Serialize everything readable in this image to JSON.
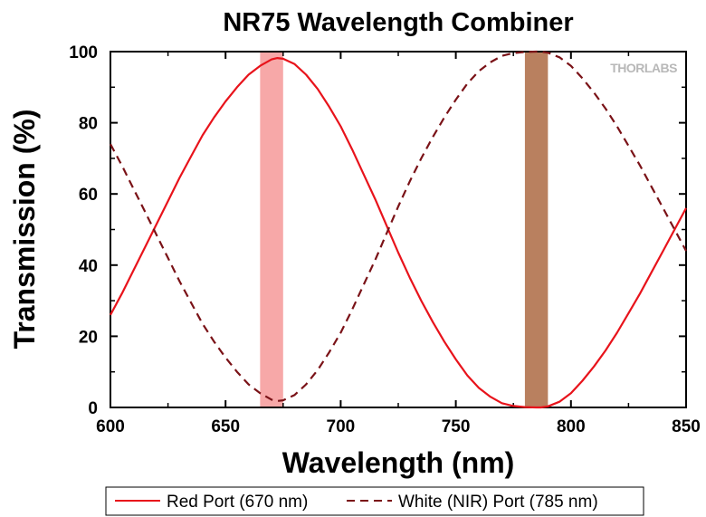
{
  "chart_data": {
    "type": "line",
    "title": "NR75 Wavelength Combiner",
    "xlabel": "Wavelength (nm)",
    "ylabel": "Transmission (%)",
    "xlim": [
      600,
      850
    ],
    "ylim": [
      0,
      100
    ],
    "xticks": [
      600,
      650,
      700,
      750,
      800,
      850
    ],
    "yticks": [
      0,
      20,
      40,
      60,
      80,
      100
    ],
    "xtick_labels": [
      "600",
      "650",
      "700",
      "750",
      "800",
      "850"
    ],
    "ytick_labels": [
      "0",
      "20",
      "40",
      "60",
      "80",
      "100"
    ],
    "grid": false,
    "legend_position": "bottom",
    "logo": "THORLABS",
    "bands": [
      {
        "x0": 665,
        "x1": 675,
        "color": "#f7a8a8"
      },
      {
        "x0": 780,
        "x1": 790,
        "color": "#b9805f"
      }
    ],
    "series": [
      {
        "name": "Red Port (670 nm)",
        "color": "#e8131b",
        "style": "solid",
        "x": [
          600,
          605,
          610,
          615,
          620,
          625,
          630,
          635,
          640,
          645,
          650,
          655,
          660,
          665,
          670,
          672.5,
          675,
          680,
          685,
          690,
          695,
          700,
          705,
          710,
          715,
          720,
          725,
          730,
          735,
          740,
          745,
          750,
          755,
          760,
          765,
          770,
          775,
          780,
          785,
          787,
          790,
          795,
          800,
          805,
          810,
          815,
          820,
          825,
          830,
          835,
          840,
          845,
          850
        ],
        "y": [
          26,
          32,
          38.5,
          45,
          51.5,
          58,
          64.5,
          70.5,
          76.5,
          81.5,
          86,
          90,
          93.5,
          96,
          97.8,
          98.2,
          98,
          96.5,
          93.5,
          89.5,
          84.5,
          79,
          72.5,
          65.5,
          58.5,
          51,
          43.5,
          36.5,
          30,
          24,
          18.5,
          13.5,
          9,
          5.5,
          3,
          1.2,
          0.4,
          0.1,
          0,
          0,
          0.3,
          1.6,
          4,
          7.5,
          11.5,
          16,
          21,
          26.5,
          32,
          38,
          44,
          50,
          56
        ]
      },
      {
        "name": "White (NIR) Port (785 nm)",
        "color": "#7a1217",
        "style": "dashed",
        "x": [
          600,
          605,
          610,
          615,
          620,
          625,
          630,
          635,
          640,
          645,
          650,
          655,
          660,
          665,
          670,
          672.5,
          675,
          680,
          685,
          690,
          695,
          700,
          705,
          710,
          715,
          720,
          725,
          730,
          735,
          740,
          745,
          750,
          755,
          760,
          765,
          770,
          775,
          780,
          785,
          787,
          790,
          795,
          800,
          805,
          810,
          815,
          820,
          825,
          830,
          835,
          840,
          845,
          850
        ],
        "y": [
          74,
          68,
          61.5,
          55,
          48.5,
          42,
          35.5,
          29.5,
          23.5,
          18.5,
          14,
          10,
          6.5,
          4,
          2.2,
          1.8,
          2,
          3.5,
          6.5,
          10.5,
          15.5,
          21,
          27.5,
          34.5,
          41.5,
          49,
          56.5,
          63.5,
          70,
          76,
          81.5,
          86.5,
          91,
          94.5,
          97,
          98.8,
          99.6,
          99.9,
          100,
          100,
          99.7,
          98.4,
          96,
          92.5,
          88.5,
          84,
          79,
          73.5,
          68,
          62,
          56,
          50,
          44
        ]
      }
    ]
  }
}
